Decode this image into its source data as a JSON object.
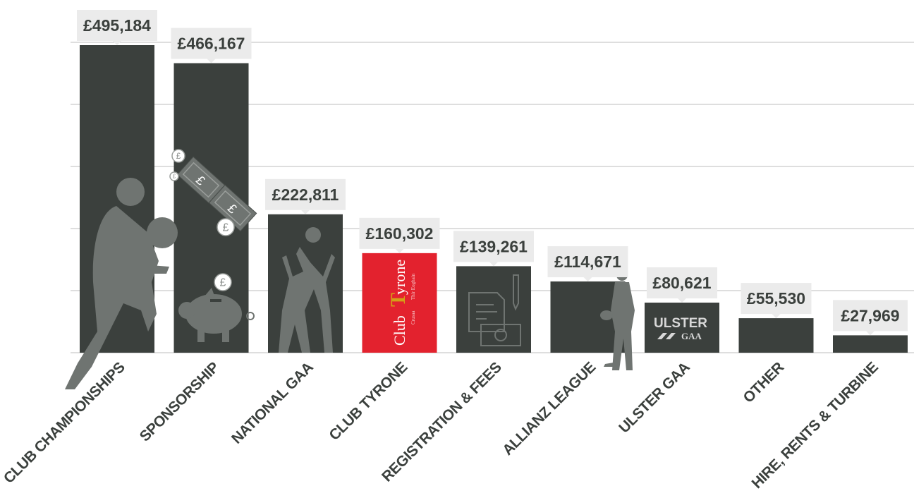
{
  "chart_data": {
    "type": "bar",
    "title": "",
    "xlabel": "",
    "ylabel": "",
    "ylim": [
      0,
      500000
    ],
    "grid": true,
    "categories": [
      "CLUB CHAMPIONSHIPS",
      "SPONSORSHIP",
      "NATIONAL GAA",
      "CLUB TYRONE",
      "REGISTRATION & FEES",
      "ALLIANZ LEAGUE",
      "ULSTER GAA",
      "OTHER",
      "HIRE, RENTS & TURBINE"
    ],
    "values": [
      495184,
      466167,
      222811,
      160302,
      139261,
      114671,
      80621,
      55530,
      27969
    ],
    "value_labels": [
      "£495,184",
      "£466,167",
      "£222,811",
      "£160,302",
      "£139,261",
      "£114,671",
      "£80,621",
      "£55,530",
      "£27,969"
    ],
    "bar_colors": [
      "#3b403d",
      "#3b403d",
      "#3b403d",
      "#e3222e",
      "#3b403d",
      "#3b403d",
      "#3b403d",
      "#3b403d",
      "#3b403d"
    ],
    "grid_color": "#bdbdbd",
    "label_box_color": "#ebebeb",
    "silhouette_color": "#6f7471"
  },
  "logos": {
    "club_tyrone": {
      "word1": "Club",
      "word2": "yrone",
      "letter": "T",
      "sub1": "Crusaa",
      "sub2": "Thír Eoghain"
    },
    "ulster_gaa": {
      "line1": "ULSTER",
      "line2": "GAA"
    }
  },
  "icons": {
    "coin_symbol": "£",
    "items": [
      "player-with-ball-icon",
      "banknotes-icon",
      "coins-icon",
      "piggy-bank-icon",
      "jumping-players-icon",
      "document-and-cash-icon",
      "standing-player-icon"
    ]
  }
}
